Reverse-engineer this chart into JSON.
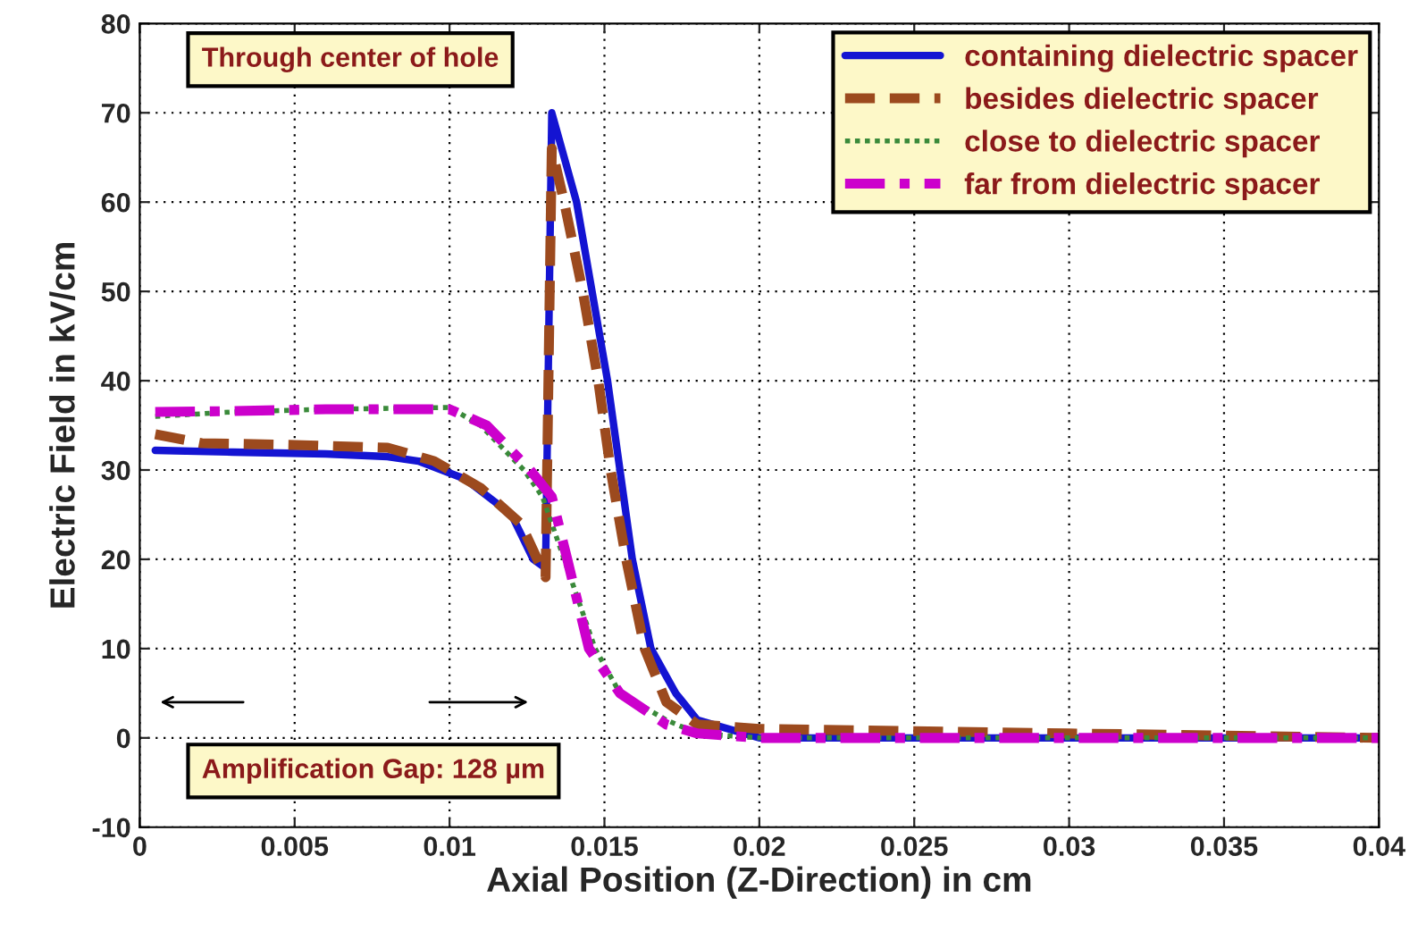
{
  "chart_data": {
    "type": "line",
    "xlabel": "Axial Position (Z-Direction) in cm",
    "ylabel": "Electric Field in kV/cm",
    "xlim": [
      0,
      0.04
    ],
    "xticks": [
      0,
      0.005,
      0.01,
      0.015,
      0.02,
      0.025,
      0.03,
      0.035,
      0.04
    ],
    "ylim": [
      -10,
      80
    ],
    "yticks": [
      -10,
      0,
      10,
      20,
      30,
      40,
      50,
      60,
      70,
      80
    ],
    "grid": true,
    "legend": "top right",
    "annotations": [
      "Through center of hole",
      "Amplification Gap: 128 µm"
    ],
    "series": [
      {
        "name": "containing dielectric spacer",
        "color": "#1414d2",
        "line_style": "solid",
        "x": [
          0.0005,
          0.003,
          0.006,
          0.008,
          0.009,
          0.0105,
          0.012,
          0.0127,
          0.0131,
          0.0133,
          0.0137,
          0.0141,
          0.0146,
          0.0151,
          0.0155,
          0.0159,
          0.0165,
          0.0173,
          0.018,
          0.019,
          0.02,
          0.025,
          0.03,
          0.035,
          0.04
        ],
        "values": [
          32.2,
          32,
          31.8,
          31.5,
          31,
          29,
          25,
          20,
          19,
          70,
          65,
          60,
          50,
          40,
          30,
          20,
          10,
          5,
          2,
          1,
          0,
          0,
          0,
          0,
          0
        ]
      },
      {
        "name": "besides dielectric spacer",
        "color": "#9c4a1e",
        "line_style": "dashed",
        "x": [
          0.0005,
          0.002,
          0.005,
          0.008,
          0.0095,
          0.011,
          0.0123,
          0.0131,
          0.0133,
          0.0137,
          0.0143,
          0.0148,
          0.0152,
          0.0157,
          0.0163,
          0.017,
          0.018,
          0.02,
          0.03,
          0.04
        ],
        "values": [
          34,
          33,
          32.8,
          32.5,
          31,
          28,
          24,
          18,
          66,
          60,
          50,
          40,
          30,
          20,
          10,
          4,
          1.5,
          1,
          0.5,
          0
        ]
      },
      {
        "name": "close to dielectric spacer",
        "color": "#3a8a3a",
        "line_style": "dotted",
        "x": [
          0.0005,
          0.003,
          0.006,
          0.01,
          0.011,
          0.0124,
          0.013,
          0.0137,
          0.0147,
          0.0155,
          0.017,
          0.018,
          0.02,
          0.03,
          0.04
        ],
        "values": [
          36,
          36.5,
          36.8,
          37,
          35,
          30,
          27,
          20,
          10,
          5,
          2,
          0.5,
          0,
          0,
          0
        ]
      },
      {
        "name": "far from dielectric spacer",
        "color": "#cc00cc",
        "line_style": "dashdot",
        "x": [
          0.0005,
          0.003,
          0.006,
          0.01,
          0.0112,
          0.0126,
          0.0133,
          0.0138,
          0.0145,
          0.0155,
          0.017,
          0.018,
          0.02,
          0.03,
          0.04
        ],
        "values": [
          36.5,
          36.6,
          36.8,
          36.8,
          35,
          30,
          27,
          20,
          10,
          5,
          1.5,
          0.5,
          0,
          0,
          0
        ]
      }
    ]
  }
}
